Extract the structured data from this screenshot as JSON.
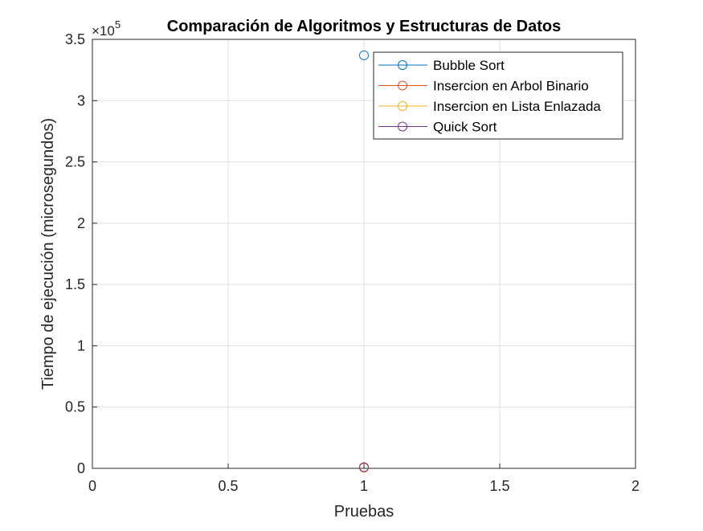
{
  "chart_data": {
    "type": "scatter",
    "title": "Comparación de Algoritmos y Estructuras de Datos",
    "xlabel": "Pruebas",
    "ylabel": "Tiempo de ejecución (microsegundos)",
    "exponent_label": "×10",
    "exponent_power": "5",
    "xlim": [
      0,
      2
    ],
    "ylim": [
      0,
      350000
    ],
    "x_ticks": [
      0,
      0.5,
      1,
      1.5,
      2
    ],
    "x_tick_labels": [
      "0",
      "0.5",
      "1",
      "1.5",
      "2"
    ],
    "y_ticks": [
      0,
      50000,
      100000,
      150000,
      200000,
      250000,
      300000,
      350000
    ],
    "y_tick_labels": [
      "0",
      "0.5",
      "1",
      "1.5",
      "2",
      "2.5",
      "3",
      "3.5"
    ],
    "grid": true,
    "legend_position": "top-right",
    "series": [
      {
        "name": "Bubble Sort",
        "color": "#0072BD",
        "x": [
          1
        ],
        "y": [
          337000
        ]
      },
      {
        "name": "Insercion en Arbol Binario",
        "color": "#D95319",
        "x": [
          1
        ],
        "y": [
          1000
        ]
      },
      {
        "name": "Insercion en Lista Enlazada",
        "color": "#EDB120",
        "x": [
          1
        ],
        "y": [
          500
        ]
      },
      {
        "name": "Quick Sort",
        "color": "#7E2F8E",
        "x": [
          1
        ],
        "y": [
          800
        ]
      }
    ]
  }
}
